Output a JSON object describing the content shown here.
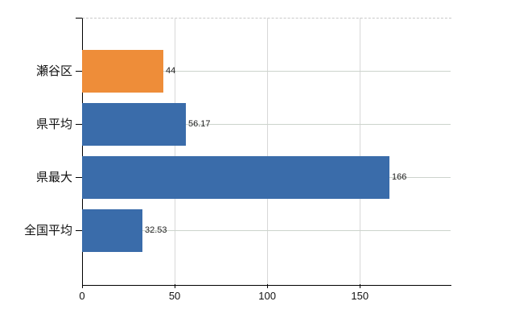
{
  "chart_data": {
    "type": "bar",
    "orientation": "horizontal",
    "title": "",
    "xlabel": "",
    "ylabel": "",
    "categories": [
      "瀬谷区",
      "県平均",
      "県最大",
      "全国平均"
    ],
    "values": [
      44,
      56.17,
      166,
      32.53
    ],
    "value_labels": [
      "44",
      "56.17",
      "166",
      "32.53"
    ],
    "bar_colors": [
      "#EE8D39",
      "#3A6CAA",
      "#3A6CAA",
      "#3A6CAA"
    ],
    "x_ticks": [
      0,
      50,
      100,
      150
    ],
    "xlim": [
      0,
      199
    ],
    "grid": true,
    "legend": false
  },
  "colors": {
    "highlight_bar": "#EE8D39",
    "default_bar": "#3A6CAA",
    "axis": "#000000",
    "vertical_gridline": "#d8d8d8",
    "horizontal_gridline": "#ccd3cc",
    "top_dashed_line": "#c9c9c9",
    "background": "#ffffff",
    "text": "#111111"
  }
}
